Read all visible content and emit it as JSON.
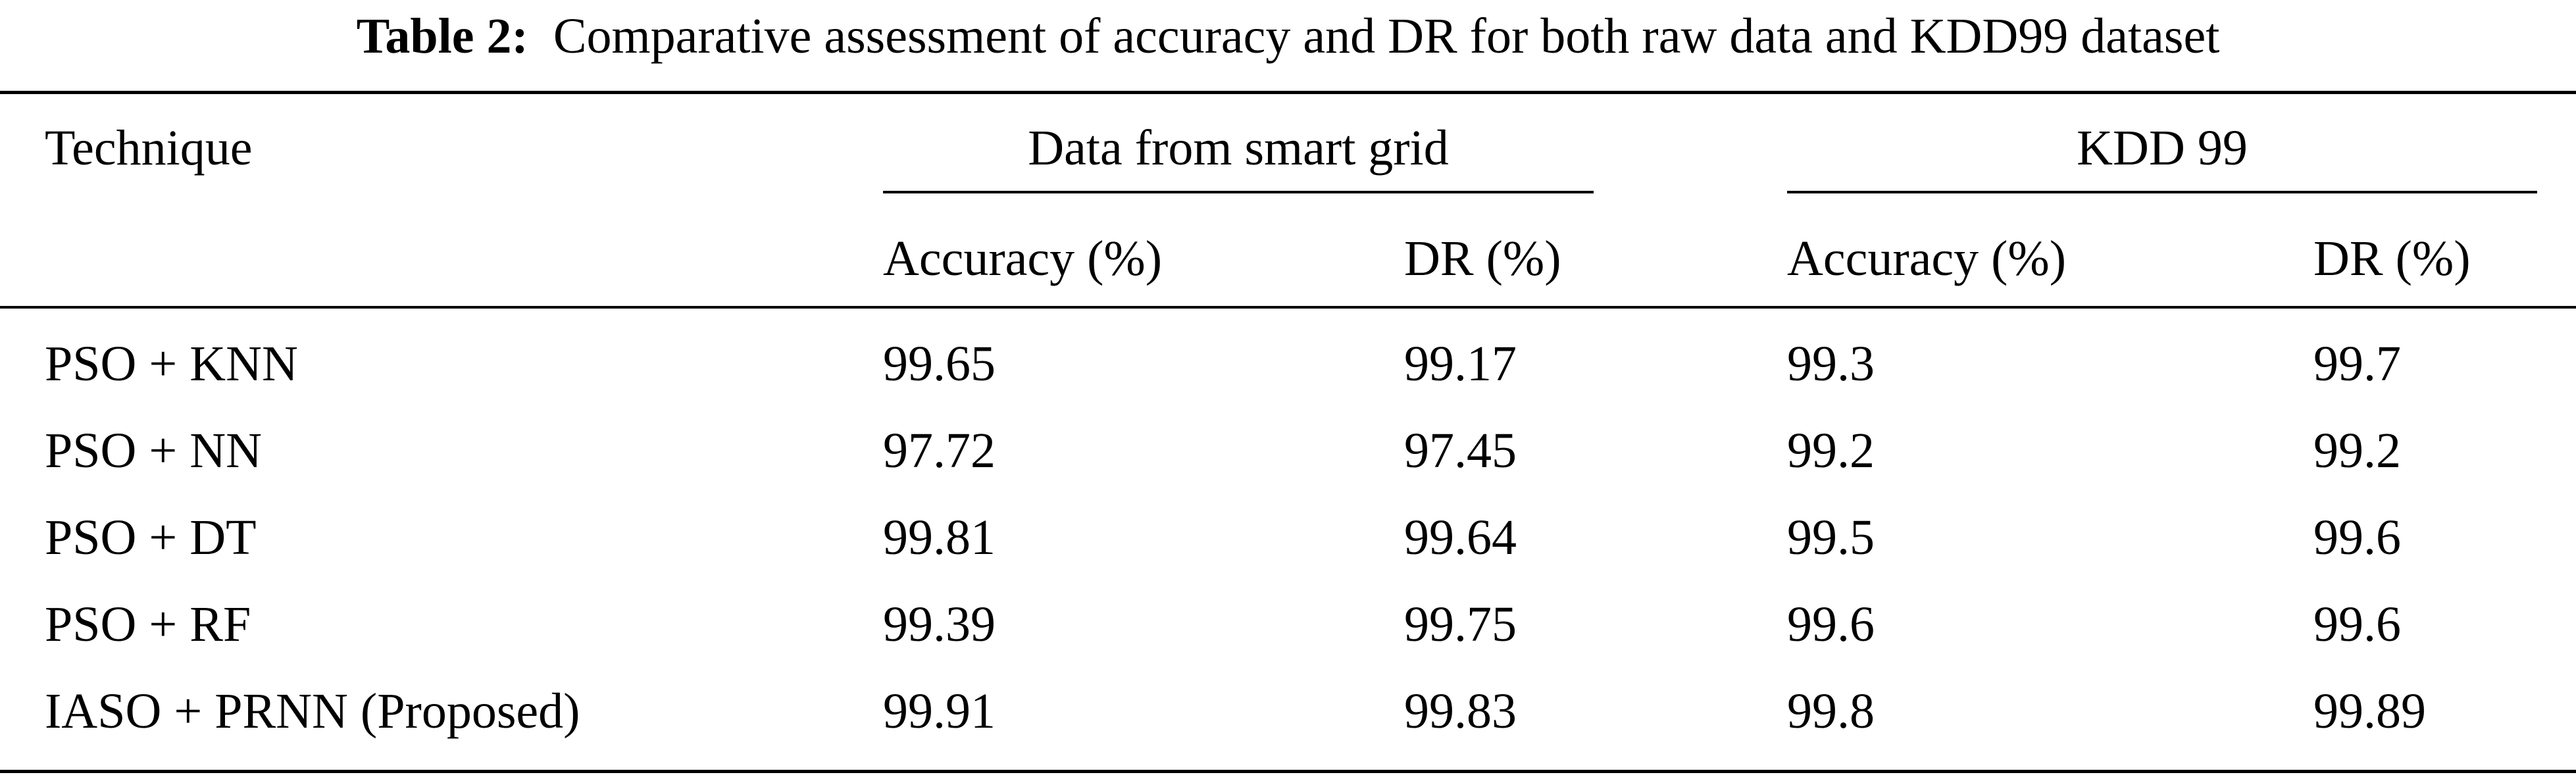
{
  "caption": {
    "label": "Table 2:",
    "text": "Comparative assessment of accuracy and DR for both raw data and KDD99 dataset"
  },
  "table": {
    "header": {
      "technique": "Technique",
      "group1": "Data from smart grid",
      "group2": "KDD 99",
      "g1_accuracy": "Accuracy (%)",
      "g1_dr": "DR (%)",
      "g2_accuracy": "Accuracy (%)",
      "g2_dr": "DR (%)"
    },
    "rows": [
      {
        "technique": "PSO + KNN",
        "smart_accuracy": "99.65",
        "smart_dr": "99.17",
        "kdd_accuracy": "99.3",
        "kdd_dr": "99.7"
      },
      {
        "technique": "PSO + NN",
        "smart_accuracy": "97.72",
        "smart_dr": "97.45",
        "kdd_accuracy": "99.2",
        "kdd_dr": "99.2"
      },
      {
        "technique": "PSO + DT",
        "smart_accuracy": "99.81",
        "smart_dr": "99.64",
        "kdd_accuracy": "99.5",
        "kdd_dr": "99.6"
      },
      {
        "technique": "PSO + RF",
        "smart_accuracy": "99.39",
        "smart_dr": "99.75",
        "kdd_accuracy": "99.6",
        "kdd_dr": "99.6"
      },
      {
        "technique": "IASO + PRNN (Proposed)",
        "smart_accuracy": "99.91",
        "smart_dr": "99.83",
        "kdd_accuracy": "99.8",
        "kdd_dr": "99.89"
      }
    ]
  }
}
